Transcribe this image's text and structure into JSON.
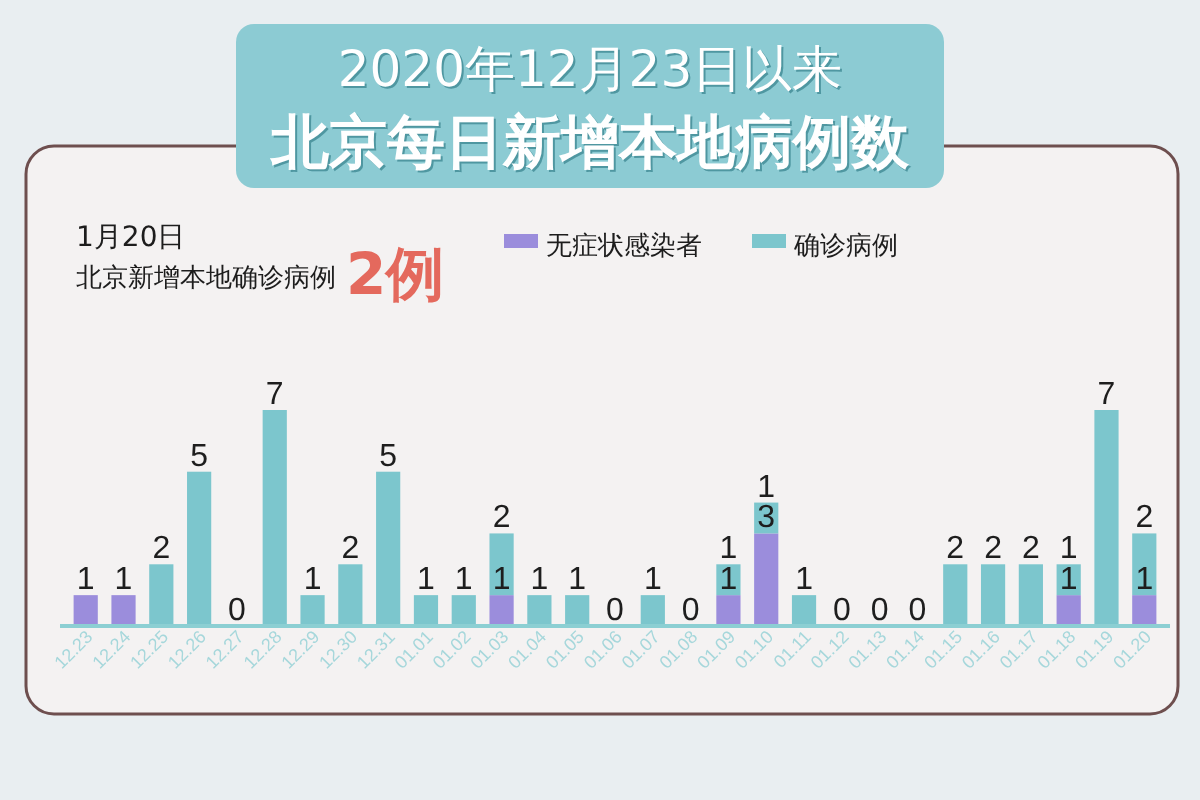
{
  "chart_data": {
    "type": "bar",
    "title": "2020年12月23日以来",
    "subtitle": "北京每日新增本地病例数",
    "annotations": [
      "1月20日",
      "北京新增本地确诊病例",
      "2例"
    ],
    "categories": [
      "12.23",
      "12.24",
      "12.25",
      "12.26",
      "12.27",
      "12.28",
      "12.29",
      "12.30",
      "12.31",
      "01.01",
      "01.02",
      "01.03",
      "01.04",
      "01.05",
      "01.06",
      "01.07",
      "01.08",
      "01.09",
      "01.10",
      "01.11",
      "01.12",
      "01.13",
      "01.14",
      "01.15",
      "01.16",
      "01.17",
      "01.18",
      "01.19",
      "01.20"
    ],
    "stacked": true,
    "series": [
      {
        "name": "无症状感染者",
        "color": "#9b8ddc",
        "values": [
          1,
          1,
          0,
          0,
          0,
          0,
          0,
          0,
          0,
          0,
          0,
          1,
          0,
          0,
          0,
          0,
          0,
          1,
          3,
          0,
          0,
          0,
          0,
          0,
          0,
          0,
          1,
          0,
          1
        ],
        "value_labels": [
          "1",
          "1",
          null,
          null,
          null,
          null,
          null,
          null,
          null,
          null,
          null,
          "1",
          null,
          null,
          null,
          null,
          null,
          "1",
          "3",
          null,
          null,
          null,
          null,
          null,
          null,
          null,
          "1",
          null,
          "1"
        ]
      },
      {
        "name": "确诊病例",
        "color": "#7cc6cd",
        "values": [
          0,
          0,
          2,
          5,
          0,
          7,
          1,
          2,
          5,
          1,
          1,
          2,
          1,
          1,
          0,
          1,
          0,
          1,
          1,
          1,
          0,
          0,
          0,
          2,
          2,
          2,
          1,
          7,
          2
        ],
        "value_labels": [
          null,
          null,
          "2",
          "5",
          "0",
          "7",
          "1",
          "2",
          "5",
          "1",
          "1",
          "2",
          "1",
          "1",
          "0",
          "1",
          "0",
          "1",
          "1",
          "1",
          "0",
          "0",
          "0",
          "2",
          "2",
          "2",
          "1",
          "7",
          "2"
        ]
      }
    ],
    "legend": "top",
    "tick_labels": "x"
  }
}
